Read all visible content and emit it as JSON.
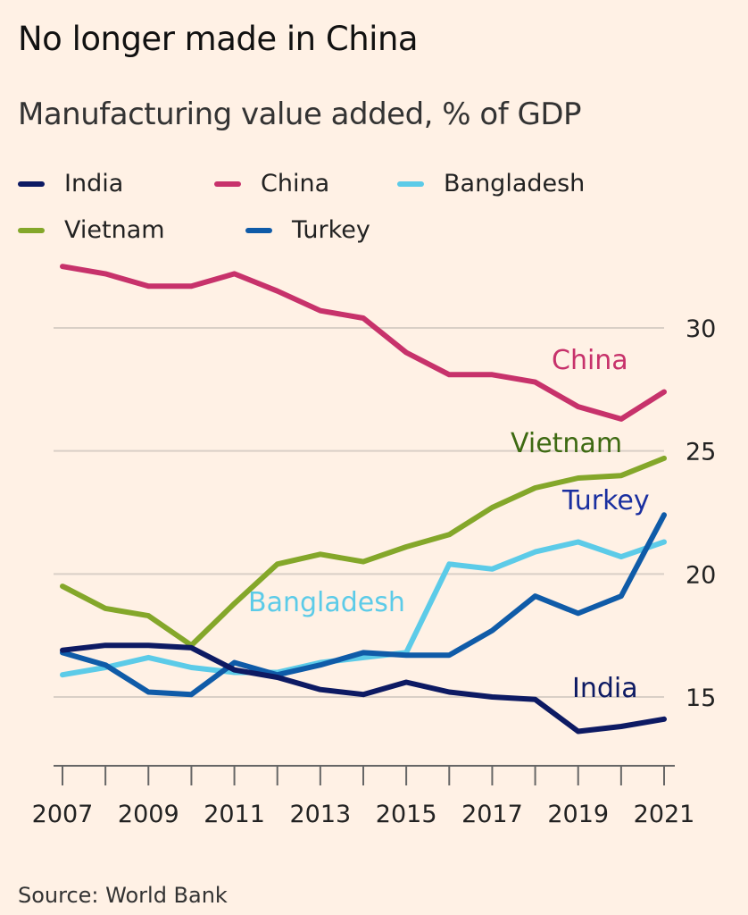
{
  "title": "No longer made in China",
  "subtitle": "Manufacturing value added, % of GDP",
  "source": "Source: World Bank",
  "colors": {
    "background": "#fff1e5",
    "India": "#0d1a63",
    "China": "#c7326b",
    "Bangladesh": "#5ccbe8",
    "Vietnam": "#84a72a",
    "Turkey": "#0f5ba8",
    "grid": "#d9cfc6",
    "axis": "#666666"
  },
  "legend": [
    {
      "name": "India"
    },
    {
      "name": "China"
    },
    {
      "name": "Bangladesh"
    },
    {
      "name": "Vietnam"
    },
    {
      "name": "Turkey"
    }
  ],
  "chart_data": {
    "type": "line",
    "title": "No longer made in China",
    "subtitle": "Manufacturing value added, % of GDP",
    "xlabel": "",
    "ylabel": "",
    "x": [
      2007,
      2008,
      2009,
      2010,
      2011,
      2012,
      2013,
      2014,
      2015,
      2016,
      2017,
      2018,
      2019,
      2020,
      2021
    ],
    "x_tick_labels": [
      "2007",
      "2009",
      "2011",
      "2013",
      "2015",
      "2017",
      "2019",
      "2021"
    ],
    "y_tick_labels": [
      "15",
      "20",
      "25",
      "30"
    ],
    "ylim": [
      12,
      33
    ],
    "y_axis_position": "right",
    "grid": "horizontal",
    "legend_placement": "top",
    "series": [
      {
        "name": "India",
        "label_color": "#0d1a63",
        "label": "India",
        "values": [
          16.9,
          17.1,
          17.1,
          17.0,
          16.1,
          15.8,
          15.3,
          15.1,
          15.6,
          15.2,
          15.0,
          14.9,
          13.6,
          13.8,
          14.1
        ]
      },
      {
        "name": "China",
        "label_color": "#c7326b",
        "label": "China",
        "values": [
          32.5,
          32.2,
          31.7,
          31.7,
          32.2,
          31.5,
          30.7,
          30.4,
          29.0,
          28.1,
          28.1,
          27.8,
          26.8,
          26.3,
          27.4
        ]
      },
      {
        "name": "Bangladesh",
        "label_color": "#5ccbe8",
        "label": "Bangladesh",
        "values": [
          15.9,
          16.2,
          16.6,
          16.2,
          16.0,
          16.0,
          16.4,
          16.6,
          16.8,
          20.4,
          20.2,
          20.9,
          21.3,
          20.7,
          21.3
        ]
      },
      {
        "name": "Vietnam",
        "label_color": "#3e6a12",
        "label": "Vietnam",
        "values": [
          19.5,
          18.6,
          18.3,
          17.1,
          18.8,
          20.4,
          20.8,
          20.5,
          21.1,
          21.6,
          22.7,
          23.5,
          23.9,
          24.0,
          24.7
        ]
      },
      {
        "name": "Turkey",
        "label_color": "#1a2fa0",
        "label": "Turkey",
        "values": [
          16.8,
          16.3,
          15.2,
          15.1,
          16.4,
          15.9,
          16.3,
          16.8,
          16.7,
          16.7,
          17.7,
          19.1,
          18.4,
          19.1,
          22.4
        ]
      }
    ]
  }
}
